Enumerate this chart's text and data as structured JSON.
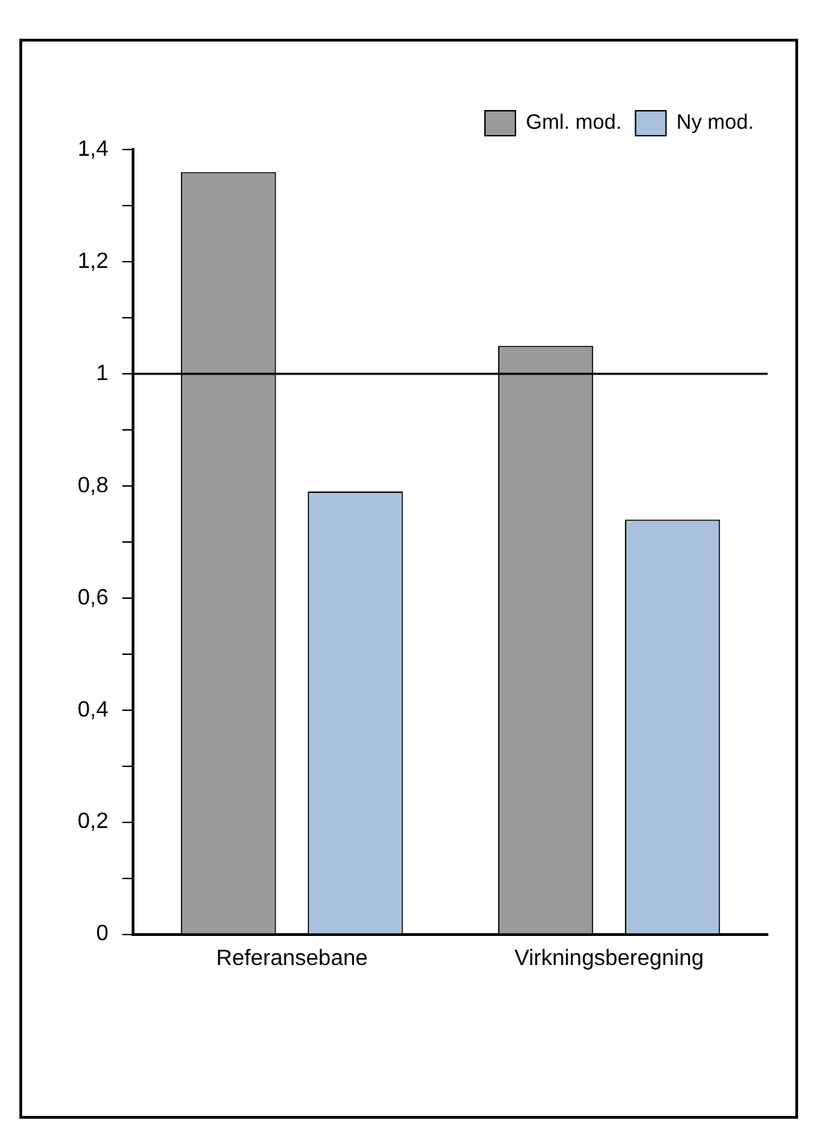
{
  "chart_data": {
    "type": "bar",
    "categories": [
      "Referansebane",
      "Virkningsberegning"
    ],
    "series": [
      {
        "name": "Gml. mod.",
        "color": "#9a9a9a",
        "values": [
          1.36,
          1.05
        ]
      },
      {
        "name": "Ny mod.",
        "color": "#a9c1dc",
        "values": [
          0.79,
          0.74
        ]
      }
    ],
    "ylim": [
      0,
      1.4
    ],
    "yticks": [
      0,
      {
        "value": 0.1,
        "label": null
      },
      {
        "value": 0.2,
        "label": "0,2"
      },
      {
        "value": 0.3,
        "label": null
      },
      {
        "value": 0.4,
        "label": "0,4"
      },
      {
        "value": 0.5,
        "label": null
      },
      {
        "value": 0.6,
        "label": "0,6"
      },
      {
        "value": 0.7,
        "label": null
      },
      {
        "value": 0.8,
        "label": "0,8"
      },
      {
        "value": 0.9,
        "label": null
      },
      1,
      {
        "value": 1.1,
        "label": null
      },
      {
        "value": 1.2,
        "label": "1,2"
      },
      {
        "value": 1.3,
        "label": null
      },
      {
        "value": 1.4,
        "label": "1,4"
      }
    ],
    "ref_lines": [
      {
        "axis": "y",
        "value": 1,
        "color": "#000000"
      }
    ],
    "grid": false,
    "legend": "top right"
  }
}
